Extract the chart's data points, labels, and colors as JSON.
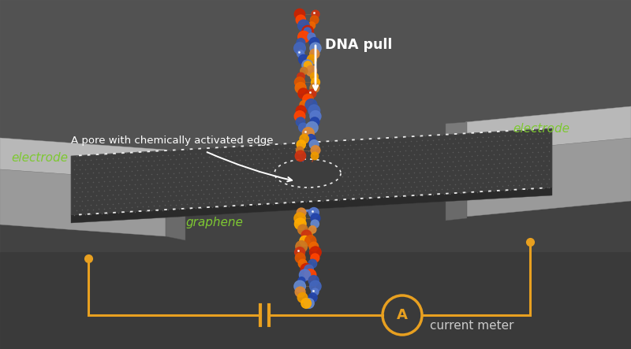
{
  "bg_top": "#5c5c5c",
  "bg_bottom": "#484848",
  "circuit_color": "#e8a020",
  "text_white": "#ffffff",
  "text_green": "#7ec832",
  "text_gray": "#cccccc",
  "label_dna_pull": "DNA pull",
  "label_graphene": "graphene",
  "label_electrode_left": "electrode",
  "label_electrode_right": "electrode",
  "label_pore": "A pore with chemically activated edge",
  "label_current": "current meter",
  "figsize": [
    8.0,
    4.43
  ],
  "dpi": 100,
  "electrode_top": "#b8b8b8",
  "electrode_front": "#989898",
  "electrode_inner": "#808080",
  "electrode_dark": "#686868",
  "graphene_main": "#3c3c3c",
  "graphene_dot": "#585858",
  "graphene_front": "#2e2e2e"
}
